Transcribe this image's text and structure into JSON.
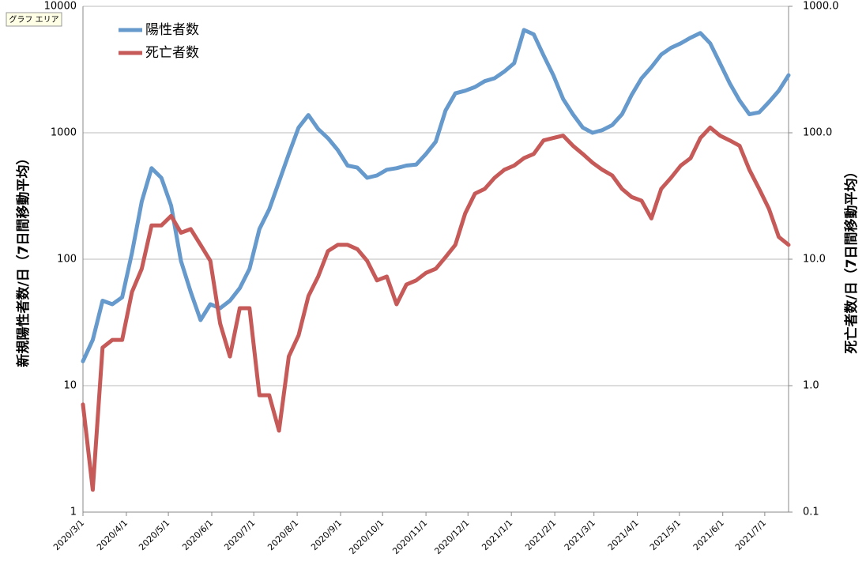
{
  "chart_data": {
    "type": "line",
    "tooltip": "グラフ エリア",
    "ylabel": "新規陽性者数/日（7日間移動平均）",
    "y2label": "死亡者数/日（7日間移動平均）",
    "log_scale": true,
    "grid": true,
    "legend": "top-left",
    "xlim": [
      "2020/3/1",
      "2021/7/18"
    ],
    "xticks": [
      "2020/3/1",
      "2020/4/1",
      "2020/5/1",
      "2020/6/1",
      "2020/7/1",
      "2020/8/1",
      "2020/9/1",
      "2020/10/1",
      "2020/11/1",
      "2020/12/1",
      "2021/1/1",
      "2021/2/1",
      "2021/3/1",
      "2021/4/1",
      "2021/5/1",
      "2021/6/1",
      "2021/7/1"
    ],
    "ylim": [
      1,
      10000
    ],
    "yticks": [
      1,
      10,
      100,
      1000,
      10000
    ],
    "y2lim": [
      0.1,
      1000
    ],
    "y2ticks": [
      0.1,
      {
        "value": 1,
        "label": "1.0"
      },
      {
        "value": 10,
        "label": "10.0"
      },
      {
        "value": 100,
        "label": "100.0"
      },
      {
        "value": 1000,
        "label": "1000.0"
      }
    ],
    "x": [
      "2020/3/1",
      "2020/3/8",
      "2020/3/15",
      "2020/3/22",
      "2020/3/29",
      "2020/4/5",
      "2020/4/12",
      "2020/4/19",
      "2020/4/26",
      "2020/5/3",
      "2020/5/10",
      "2020/5/17",
      "2020/5/24",
      "2020/5/31",
      "2020/6/7",
      "2020/6/14",
      "2020/6/21",
      "2020/6/28",
      "2020/7/5",
      "2020/7/12",
      "2020/7/19",
      "2020/7/26",
      "2020/8/2",
      "2020/8/9",
      "2020/8/16",
      "2020/8/23",
      "2020/8/30",
      "2020/9/6",
      "2020/9/13",
      "2020/9/20",
      "2020/9/27",
      "2020/10/4",
      "2020/10/11",
      "2020/10/18",
      "2020/10/25",
      "2020/11/1",
      "2020/11/8",
      "2020/11/15",
      "2020/11/22",
      "2020/11/29",
      "2020/12/6",
      "2020/12/13",
      "2020/12/20",
      "2020/12/27",
      "2021/1/3",
      "2021/1/10",
      "2021/1/17",
      "2021/1/24",
      "2021/1/31",
      "2021/2/7",
      "2021/2/14",
      "2021/2/21",
      "2021/2/28",
      "2021/3/7",
      "2021/3/14",
      "2021/3/21",
      "2021/3/28",
      "2021/4/4",
      "2021/4/11",
      "2021/4/18",
      "2021/4/25",
      "2021/5/2",
      "2021/5/9",
      "2021/5/16",
      "2021/5/23",
      "2021/5/30",
      "2021/6/6",
      "2021/6/13",
      "2021/6/20",
      "2021/6/27",
      "2021/7/4",
      "2021/7/11",
      "2021/7/18"
    ],
    "series": [
      {
        "name": "陽性者数",
        "color": "#6699cc",
        "values": [
          15.6,
          23,
          47,
          44,
          50,
          112,
          286,
          525,
          440,
          265,
          97,
          55,
          33,
          44,
          41,
          47,
          59,
          84,
          173,
          248,
          410,
          680,
          1100,
          1380,
          1070,
          905,
          730,
          550,
          530,
          440,
          460,
          510,
          525,
          550,
          560,
          680,
          850,
          1500,
          2050,
          2150,
          2300,
          2560,
          2700,
          3050,
          3550,
          6500,
          6000,
          4100,
          2850,
          1850,
          1400,
          1100,
          1000,
          1050,
          1150,
          1400,
          2000,
          2700,
          3300,
          4150,
          4700,
          5100,
          5650,
          6150,
          5100,
          3550,
          2460,
          1800,
          1400,
          1450,
          1750,
          2150,
          2850
        ]
      },
      {
        "name": "死亡者数",
        "color": "#c65a58",
        "axis": "y2",
        "values": [
          0.71,
          0.15,
          2.0,
          2.3,
          2.3,
          5.5,
          8.4,
          18.5,
          18.5,
          22,
          16.2,
          17.3,
          13,
          9.7,
          3.1,
          1.7,
          4.1,
          4.1,
          0.84,
          0.84,
          0.44,
          1.7,
          2.5,
          5.1,
          7.3,
          11.6,
          13,
          13,
          12,
          9.7,
          6.8,
          7.3,
          4.4,
          6.3,
          6.8,
          7.8,
          8.4,
          10.4,
          13,
          23,
          33,
          36,
          44,
          51,
          55,
          63,
          68,
          87,
          91,
          95,
          79,
          68,
          58,
          51,
          46,
          36,
          31,
          29,
          21,
          36,
          44,
          55,
          63,
          91,
          110,
          95,
          87,
          79,
          51,
          36,
          25,
          15,
          13
        ]
      }
    ]
  }
}
